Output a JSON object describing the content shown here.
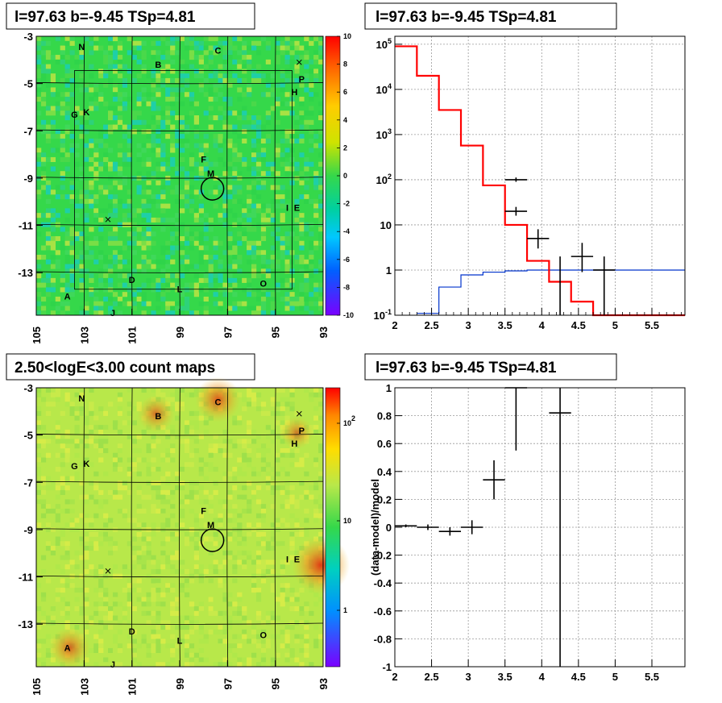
{
  "chart_data": [
    {
      "type": "heatmap",
      "title": "l=97.63 b=-9.45 TSp=4.81",
      "x_ticks": [
        "105",
        "103",
        "101",
        "99",
        "97",
        "95",
        "93"
      ],
      "y_ticks": [
        "-3",
        "-5",
        "-7",
        "-9",
        "-11",
        "-13"
      ],
      "x_range": [
        105,
        93
      ],
      "y_range": [
        -3,
        -14.8
      ],
      "colorbar_ticks": [
        "10",
        "8",
        "6",
        "4",
        "2",
        "0",
        "-2",
        "-4",
        "-6",
        "-8",
        "-10"
      ],
      "colorbar_range": [
        -10,
        10
      ],
      "colors": {
        "background": "#35d84a",
        "low": "#7a00ff",
        "high": "#ff0000"
      },
      "sources": [
        {
          "label": "N",
          "l": 103.1,
          "b": -3.45
        },
        {
          "label": "C",
          "l": 97.4,
          "b": -3.6
        },
        {
          "label": "B",
          "l": 99.9,
          "b": -4.2
        },
        {
          "label": "P",
          "l": 93.9,
          "b": -4.8
        },
        {
          "label": "H",
          "l": 94.2,
          "b": -5.35
        },
        {
          "label": "G",
          "l": 103.4,
          "b": -6.3
        },
        {
          "label": "K",
          "l": 102.9,
          "b": -6.2
        },
        {
          "label": "F",
          "l": 98.0,
          "b": -8.2
        },
        {
          "label": "M",
          "l": 97.7,
          "b": -8.8
        },
        {
          "label": "I",
          "l": 94.5,
          "b": -10.25
        },
        {
          "label": "E",
          "l": 94.1,
          "b": -10.25
        },
        {
          "label": "D",
          "l": 101.0,
          "b": -13.3
        },
        {
          "label": "O",
          "l": 95.5,
          "b": -13.45
        },
        {
          "label": "L",
          "l": 99.0,
          "b": -13.7
        },
        {
          "label": "A",
          "l": 103.7,
          "b": -14.0
        },
        {
          "label": "J",
          "l": 101.8,
          "b": -14.7
        }
      ],
      "markers": [
        {
          "l": 94.0,
          "b": -4.1
        },
        {
          "l": 102.0,
          "b": -10.75
        }
      ],
      "target": {
        "l": 97.63,
        "b": -9.45
      }
    },
    {
      "type": "line",
      "title": "l=97.63 b=-9.45 TSp=4.81",
      "x_ticks": [
        "2",
        "2.5",
        "3",
        "3.5",
        "4",
        "4.5",
        "5",
        "5.5"
      ],
      "y_ticks": [
        "10^5",
        "10^4",
        "10^3",
        "10^2",
        "10",
        "1",
        "10^-1"
      ],
      "xlim": [
        2,
        5.95
      ],
      "ylim": [
        0.1,
        150000
      ],
      "yscale": "log",
      "colors": {
        "model": "#ff0000",
        "signal": "#0033cc",
        "data": "#000000"
      },
      "model_steps": [
        {
          "x0": 2.0,
          "x1": 2.3,
          "y": 90000
        },
        {
          "x0": 2.3,
          "x1": 2.6,
          "y": 20000
        },
        {
          "x0": 2.6,
          "x1": 2.9,
          "y": 3500
        },
        {
          "x0": 2.9,
          "x1": 3.2,
          "y": 570
        },
        {
          "x0": 3.2,
          "x1": 3.5,
          "y": 75
        },
        {
          "x0": 3.5,
          "x1": 3.8,
          "y": 10
        },
        {
          "x0": 3.8,
          "x1": 4.1,
          "y": 1.6
        },
        {
          "x0": 4.1,
          "x1": 4.4,
          "y": 0.55
        },
        {
          "x0": 4.4,
          "x1": 4.7,
          "y": 0.2
        },
        {
          "x0": 4.7,
          "x1": 5.95,
          "y": 0.1
        }
      ],
      "signal_steps": [
        {
          "x0": 2.3,
          "x1": 2.6,
          "y": 0.11
        },
        {
          "x0": 2.6,
          "x1": 2.9,
          "y": 0.42
        },
        {
          "x0": 2.9,
          "x1": 3.2,
          "y": 0.78
        },
        {
          "x0": 3.2,
          "x1": 3.5,
          "y": 0.9
        },
        {
          "x0": 3.5,
          "x1": 3.8,
          "y": 0.96
        },
        {
          "x0": 3.8,
          "x1": 4.1,
          "y": 1.0
        },
        {
          "x0": 4.1,
          "x1": 5.95,
          "y": 1.0
        }
      ],
      "data_points": [
        {
          "x": 3.65,
          "xlo": 3.5,
          "xhi": 3.8,
          "y": 100,
          "ylo": 90,
          "yhi": 112
        },
        {
          "x": 3.65,
          "xlo": 3.5,
          "xhi": 3.8,
          "y": 20,
          "ylo": 16,
          "yhi": 25
        },
        {
          "x": 3.95,
          "xlo": 3.8,
          "xhi": 4.1,
          "y": 5,
          "ylo": 3,
          "yhi": 8
        },
        {
          "x": 4.25,
          "xlo": 4.25,
          "xhi": 4.25,
          "y": 0.8,
          "ylo": 0.1,
          "yhi": 2
        },
        {
          "x": 4.55,
          "xlo": 4.4,
          "xhi": 4.7,
          "y": 2,
          "ylo": 0.9,
          "yhi": 4
        },
        {
          "x": 4.85,
          "xlo": 4.7,
          "xhi": 5.0,
          "y": 1,
          "ylo": 0.1,
          "yhi": 2
        }
      ]
    },
    {
      "type": "heatmap",
      "title": "2.50<logE<3.00 count maps",
      "x_ticks": [
        "105",
        "103",
        "101",
        "99",
        "97",
        "95",
        "93"
      ],
      "y_ticks": [
        "-3",
        "-5",
        "-7",
        "-9",
        "-11",
        "-13"
      ],
      "x_range": [
        105,
        93
      ],
      "y_range": [
        -3,
        -14.8
      ],
      "colorbar_ticks": [
        "10^2",
        "10",
        "1"
      ],
      "colorbar_scale": "log",
      "colors": {
        "background": "#b8e84a",
        "hot": "#e04020"
      },
      "hotspots": [
        {
          "l": 97.4,
          "b": -3.5,
          "strength": 0.7
        },
        {
          "l": 93.1,
          "b": -10.5,
          "strength": 1.0
        },
        {
          "l": 103.6,
          "b": -14.0,
          "strength": 0.6
        },
        {
          "l": 100.0,
          "b": -4.1,
          "strength": 0.5
        },
        {
          "l": 94.1,
          "b": -4.9,
          "strength": 0.4
        }
      ],
      "sources": [
        {
          "label": "N",
          "l": 103.1,
          "b": -3.45
        },
        {
          "label": "C",
          "l": 97.4,
          "b": -3.6
        },
        {
          "label": "B",
          "l": 99.9,
          "b": -4.2
        },
        {
          "label": "P",
          "l": 93.9,
          "b": -4.8
        },
        {
          "label": "H",
          "l": 94.2,
          "b": -5.35
        },
        {
          "label": "G",
          "l": 103.4,
          "b": -6.3
        },
        {
          "label": "K",
          "l": 102.9,
          "b": -6.2
        },
        {
          "label": "F",
          "l": 98.0,
          "b": -8.2
        },
        {
          "label": "M",
          "l": 97.7,
          "b": -8.8
        },
        {
          "label": "I",
          "l": 94.5,
          "b": -10.25
        },
        {
          "label": "E",
          "l": 94.1,
          "b": -10.25
        },
        {
          "label": "D",
          "l": 101.0,
          "b": -13.3
        },
        {
          "label": "O",
          "l": 95.5,
          "b": -13.45
        },
        {
          "label": "L",
          "l": 99.0,
          "b": -13.7
        },
        {
          "label": "A",
          "l": 103.7,
          "b": -14.0
        },
        {
          "label": "J",
          "l": 101.8,
          "b": -14.7
        }
      ],
      "markers": [
        {
          "l": 94.0,
          "b": -4.1
        },
        {
          "l": 102.0,
          "b": -10.75
        }
      ],
      "target": {
        "l": 97.63,
        "b": -9.45
      }
    },
    {
      "type": "scatter",
      "title": "l=97.63 b=-9.45 TSp=4.81",
      "ylabel": "(data-model)/model",
      "x_ticks": [
        "2",
        "2.5",
        "3",
        "3.5",
        "4",
        "4.5",
        "5",
        "5.5"
      ],
      "y_ticks": [
        "1",
        "0.8",
        "0.6",
        "0.4",
        "0.2",
        "0",
        "-0.2",
        "-0.4",
        "-0.6",
        "-0.8",
        "-1"
      ],
      "xlim": [
        2,
        5.95
      ],
      "ylim": [
        -1,
        1
      ],
      "colors": {
        "data": "#000000"
      },
      "data_points": [
        {
          "x": 2.15,
          "xlo": 2.0,
          "xhi": 2.3,
          "y": 0.01,
          "ylo": 0.0,
          "yhi": 0.02
        },
        {
          "x": 2.45,
          "xlo": 2.3,
          "xhi": 2.6,
          "y": 0.0,
          "ylo": -0.02,
          "yhi": 0.02
        },
        {
          "x": 2.75,
          "xlo": 2.6,
          "xhi": 2.9,
          "y": -0.03,
          "ylo": -0.06,
          "yhi": 0.0
        },
        {
          "x": 3.05,
          "xlo": 2.9,
          "xhi": 3.2,
          "y": 0.0,
          "ylo": -0.05,
          "yhi": 0.05
        },
        {
          "x": 3.35,
          "xlo": 3.2,
          "xhi": 3.5,
          "y": 0.34,
          "ylo": 0.2,
          "yhi": 0.48
        },
        {
          "x": 3.65,
          "xlo": 3.5,
          "xhi": 3.8,
          "y": 1.0,
          "ylo": 0.55,
          "yhi": 1.0
        },
        {
          "x": 4.25,
          "xlo": 4.1,
          "xhi": 4.4,
          "y": 0.82,
          "ylo": -1.0,
          "yhi": 1.0
        }
      ]
    }
  ]
}
